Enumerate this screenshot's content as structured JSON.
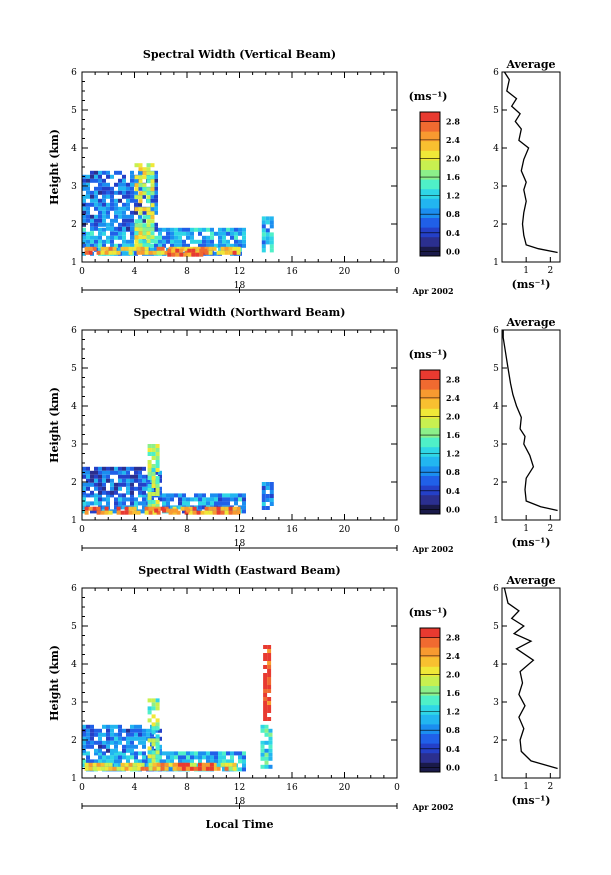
{
  "chart_data": [
    {
      "type": "heatmap",
      "title": "Spectral Width (Vertical Beam)",
      "ylabel": "Height (km)",
      "xlabel": "",
      "xlim": [
        0,
        24
      ],
      "ylim": [
        1,
        6
      ],
      "xticks": [
        "0",
        "4",
        "8",
        "12",
        "16",
        "20",
        "0"
      ],
      "yticks": [
        "1",
        "2",
        "3",
        "4",
        "5",
        "6"
      ],
      "date_marker": "18",
      "date_label": "Apr 2002",
      "colorbar": {
        "unit": "(ms⁻¹)",
        "ticks": [
          "0.0",
          "0.4",
          "0.8",
          "1.2",
          "1.6",
          "2.0",
          "2.4",
          "2.8"
        ],
        "range": [
          -0.1,
          3.0
        ]
      },
      "regions": [
        {
          "x": [
            0,
            12.3
          ],
          "y": [
            1.2,
            1.9
          ],
          "level": 1.0
        },
        {
          "x": [
            0,
            5.5
          ],
          "y": [
            1.9,
            3.4
          ],
          "level": 0.7
        },
        {
          "x": [
            4.0,
            5.3
          ],
          "y": [
            1.4,
            3.6
          ],
          "level": 1.8
        },
        {
          "x": [
            0.2,
            12.0
          ],
          "y": [
            1.2,
            1.4
          ],
          "level": 2.4
        },
        {
          "x": [
            6.5,
            9.5
          ],
          "y": [
            1.2,
            1.35
          ],
          "level": 2.8
        },
        {
          "x": [
            13.7,
            14.5
          ],
          "y": [
            1.3,
            2.2
          ],
          "level": 1.0
        }
      ],
      "average_profile": {
        "title": "Average",
        "xlabel": "(ms⁻¹)",
        "xticks": [
          "1",
          "2"
        ],
        "xlim": [
          0,
          2.4
        ],
        "points": [
          [
            2.3,
            1.25
          ],
          [
            1.5,
            1.35
          ],
          [
            1.0,
            1.45
          ],
          [
            0.9,
            1.7
          ],
          [
            0.85,
            2.0
          ],
          [
            0.9,
            2.3
          ],
          [
            1.0,
            2.6
          ],
          [
            0.9,
            2.9
          ],
          [
            1.0,
            3.1
          ],
          [
            0.8,
            3.4
          ],
          [
            0.9,
            3.7
          ],
          [
            1.1,
            4.0
          ],
          [
            0.7,
            4.2
          ],
          [
            0.8,
            4.5
          ],
          [
            0.55,
            4.7
          ],
          [
            0.75,
            4.9
          ],
          [
            0.4,
            5.1
          ],
          [
            0.6,
            5.3
          ],
          [
            0.2,
            5.5
          ],
          [
            0.3,
            5.8
          ],
          [
            0.1,
            6.0
          ]
        ]
      }
    },
    {
      "type": "heatmap",
      "title": "Spectral Width (Northward Beam)",
      "ylabel": "Height (km)",
      "xlabel": "",
      "xlim": [
        0,
        24
      ],
      "ylim": [
        1,
        6
      ],
      "xticks": [
        "0",
        "4",
        "8",
        "12",
        "16",
        "20",
        "0"
      ],
      "yticks": [
        "1",
        "2",
        "3",
        "4",
        "5",
        "6"
      ],
      "date_marker": "18",
      "date_label": "Apr 2002",
      "colorbar": {
        "unit": "(ms⁻¹)",
        "ticks": [
          "0.0",
          "0.4",
          "0.8",
          "1.2",
          "1.6",
          "2.0",
          "2.4",
          "2.8"
        ],
        "range": [
          -0.1,
          3.0
        ]
      },
      "regions": [
        {
          "x": [
            0,
            12.3
          ],
          "y": [
            1.2,
            1.7
          ],
          "level": 0.9
        },
        {
          "x": [
            0,
            5.8
          ],
          "y": [
            1.7,
            2.4
          ],
          "level": 0.6
        },
        {
          "x": [
            5.0,
            5.7
          ],
          "y": [
            1.3,
            3.0
          ],
          "level": 1.7
        },
        {
          "x": [
            0.2,
            12.0
          ],
          "y": [
            1.2,
            1.35
          ],
          "level": 2.5
        },
        {
          "x": [
            5.5,
            8.0
          ],
          "y": [
            1.2,
            1.3
          ],
          "level": 2.9
        },
        {
          "x": [
            13.7,
            14.5
          ],
          "y": [
            1.3,
            2.0
          ],
          "level": 0.8
        }
      ],
      "average_profile": {
        "title": "Average",
        "xlabel": "(ms⁻¹)",
        "xticks": [
          "1",
          "2"
        ],
        "xlim": [
          0,
          2.4
        ],
        "points": [
          [
            2.3,
            1.25
          ],
          [
            1.6,
            1.35
          ],
          [
            1.0,
            1.5
          ],
          [
            0.95,
            1.8
          ],
          [
            1.0,
            2.1
          ],
          [
            1.3,
            2.4
          ],
          [
            1.15,
            2.7
          ],
          [
            0.9,
            3.0
          ],
          [
            0.95,
            3.2
          ],
          [
            0.75,
            3.4
          ],
          [
            0.8,
            3.7
          ],
          [
            0.6,
            4.0
          ],
          [
            0.45,
            4.3
          ],
          [
            0.35,
            4.6
          ],
          [
            0.25,
            5.0
          ],
          [
            0.15,
            5.4
          ],
          [
            0.05,
            5.8
          ],
          [
            0.05,
            6.0
          ]
        ]
      }
    },
    {
      "type": "heatmap",
      "title": "Spectral Width (Eastward Beam)",
      "ylabel": "Height (km)",
      "xlabel": "Local Time",
      "xlim": [
        0,
        24
      ],
      "ylim": [
        1,
        6
      ],
      "xticks": [
        "0",
        "4",
        "8",
        "12",
        "16",
        "20",
        "0"
      ],
      "yticks": [
        "1",
        "2",
        "3",
        "4",
        "5",
        "6"
      ],
      "date_marker": "18",
      "date_label": "Apr 2002",
      "colorbar": {
        "unit": "(ms⁻¹)",
        "ticks": [
          "0.0",
          "0.4",
          "0.8",
          "1.2",
          "1.6",
          "2.0",
          "2.4",
          "2.8"
        ],
        "range": [
          -0.1,
          3.0
        ]
      },
      "regions": [
        {
          "x": [
            0,
            12.3
          ],
          "y": [
            1.2,
            1.7
          ],
          "level": 1.0
        },
        {
          "x": [
            0,
            5.8
          ],
          "y": [
            1.7,
            2.4
          ],
          "level": 0.7
        },
        {
          "x": [
            5.0,
            5.8
          ],
          "y": [
            1.4,
            3.2
          ],
          "level": 1.6
        },
        {
          "x": [
            0.2,
            12.0
          ],
          "y": [
            1.2,
            1.4
          ],
          "level": 2.2
        },
        {
          "x": [
            7.0,
            10.0
          ],
          "y": [
            1.2,
            1.4
          ],
          "level": 2.8
        },
        {
          "x": [
            13.8,
            14.3
          ],
          "y": [
            2.5,
            4.5
          ],
          "level": 2.9
        },
        {
          "x": [
            13.6,
            14.5
          ],
          "y": [
            1.3,
            2.4
          ],
          "level": 1.2
        }
      ],
      "average_profile": {
        "title": "Average",
        "xlabel": "(ms⁻¹)",
        "xticks": [
          "1",
          "2"
        ],
        "xlim": [
          0,
          2.4
        ],
        "points": [
          [
            2.3,
            1.25
          ],
          [
            1.2,
            1.45
          ],
          [
            0.8,
            1.7
          ],
          [
            0.75,
            2.0
          ],
          [
            0.9,
            2.3
          ],
          [
            0.7,
            2.6
          ],
          [
            0.95,
            2.9
          ],
          [
            0.7,
            3.2
          ],
          [
            0.85,
            3.5
          ],
          [
            0.75,
            3.8
          ],
          [
            1.3,
            4.1
          ],
          [
            0.6,
            4.4
          ],
          [
            1.2,
            4.6
          ],
          [
            0.5,
            4.8
          ],
          [
            0.9,
            5.0
          ],
          [
            0.4,
            5.2
          ],
          [
            0.7,
            5.4
          ],
          [
            0.25,
            5.6
          ],
          [
            0.1,
            6.0
          ]
        ]
      }
    }
  ]
}
